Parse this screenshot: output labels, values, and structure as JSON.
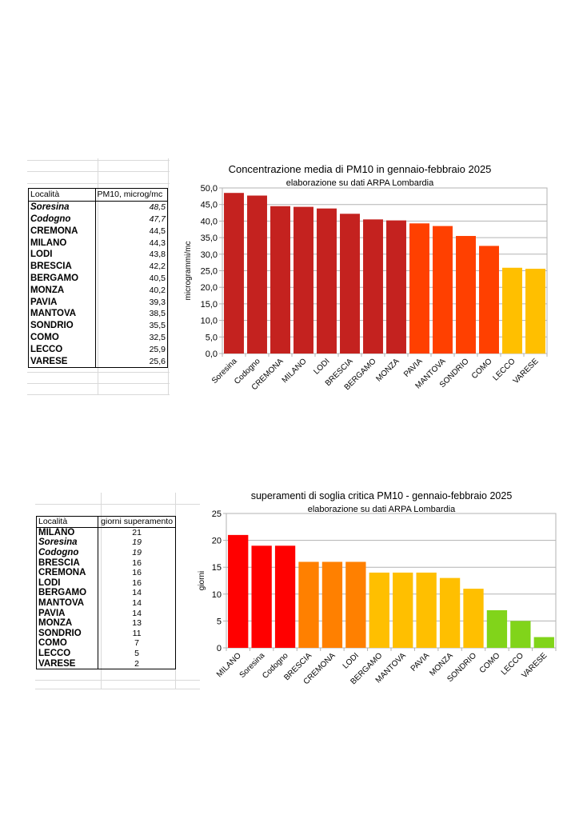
{
  "table1": {
    "headers": [
      "Località",
      "PM10, microg/mc"
    ],
    "rows": [
      {
        "name": "Soresina",
        "value": "48,5",
        "italic": true
      },
      {
        "name": "Codogno",
        "value": "47,7",
        "italic": true
      },
      {
        "name": "CREMONA",
        "value": "44,5",
        "italic": false
      },
      {
        "name": "MILANO",
        "value": "44,3",
        "italic": false
      },
      {
        "name": "LODI",
        "value": "43,8",
        "italic": false
      },
      {
        "name": "BRESCIA",
        "value": "42,2",
        "italic": false
      },
      {
        "name": "BERGAMO",
        "value": "40,5",
        "italic": false
      },
      {
        "name": "MONZA",
        "value": "40,2",
        "italic": false
      },
      {
        "name": "PAVIA",
        "value": "39,3",
        "italic": false
      },
      {
        "name": "MANTOVA",
        "value": "38,5",
        "italic": false
      },
      {
        "name": "SONDRIO",
        "value": "35,5",
        "italic": false
      },
      {
        "name": "COMO",
        "value": "32,5",
        "italic": false
      },
      {
        "name": "LECCO",
        "value": "25,9",
        "italic": false
      },
      {
        "name": "VARESE",
        "value": "25,6",
        "italic": false
      }
    ]
  },
  "table2": {
    "headers": [
      "Località",
      "giorni superamento"
    ],
    "rows": [
      {
        "name": "MILANO",
        "value": "21",
        "italic": false
      },
      {
        "name": "Soresina",
        "value": "19",
        "italic": true
      },
      {
        "name": "Codogno",
        "value": "19",
        "italic": true
      },
      {
        "name": "BRESCIA",
        "value": "16",
        "italic": false
      },
      {
        "name": "CREMONA",
        "value": "16",
        "italic": false
      },
      {
        "name": "LODI",
        "value": "16",
        "italic": false
      },
      {
        "name": "BERGAMO",
        "value": "14",
        "italic": false
      },
      {
        "name": "MANTOVA",
        "value": "14",
        "italic": false
      },
      {
        "name": "PAVIA",
        "value": "14",
        "italic": false
      },
      {
        "name": "MONZA",
        "value": "13",
        "italic": false
      },
      {
        "name": "SONDRIO",
        "value": "11",
        "italic": false
      },
      {
        "name": "COMO",
        "value": "7",
        "italic": false
      },
      {
        "name": "LECCO",
        "value": "5",
        "italic": false
      },
      {
        "name": "VARESE",
        "value": "2",
        "italic": false
      }
    ]
  },
  "chart_data": [
    {
      "type": "bar",
      "title": "Concentrazione media di PM10 in gennaio-febbraio 2025",
      "subtitle": "elaborazione su dati ARPA Lombardia",
      "xlabel": "",
      "ylabel": "microgrammi/mc",
      "ylim": [
        0,
        50
      ],
      "ytick_step": 5,
      "ytick_labels": [
        "0,0",
        "5,0",
        "10,0",
        "15,0",
        "20,0",
        "25,0",
        "30,0",
        "35,0",
        "40,0",
        "45,0",
        "50,0"
      ],
      "grid": true,
      "categories": [
        "Soresina",
        "Codogno",
        "CREMONA",
        "MILANO",
        "LODI",
        "BRESCIA",
        "BERGAMO",
        "MONZA",
        "PAVIA",
        "MANTOVA",
        "SONDRIO",
        "COMO",
        "LECCO",
        "VARESE"
      ],
      "values": [
        48.5,
        47.7,
        44.5,
        44.3,
        43.8,
        42.2,
        40.5,
        40.2,
        39.3,
        38.5,
        35.5,
        32.5,
        25.9,
        25.6
      ],
      "colors": [
        "#c4221f",
        "#c4221f",
        "#c4221f",
        "#c4221f",
        "#c4221f",
        "#c4221f",
        "#c4221f",
        "#c4221f",
        "#ff4000",
        "#ff4000",
        "#ff4000",
        "#ff4000",
        "#ffbf00",
        "#ffbf00"
      ]
    },
    {
      "type": "bar",
      "title": "superamenti di soglia critica PM10 - gennaio-febbraio 2025",
      "subtitle": "elaborazione su dati ARPA Lombardia",
      "xlabel": "",
      "ylabel": "giorni",
      "ylim": [
        0,
        25
      ],
      "ytick_step": 5,
      "ytick_labels": [
        "0",
        "5",
        "10",
        "15",
        "20",
        "25"
      ],
      "grid": true,
      "categories": [
        "MILANO",
        "Soresina",
        "Codogno",
        "BRESCIA",
        "CREMONA",
        "LODI",
        "BERGAMO",
        "MANTOVA",
        "PAVIA",
        "MONZA",
        "SONDRIO",
        "COMO",
        "LECCO",
        "VARESE"
      ],
      "values": [
        21,
        19,
        19,
        16,
        16,
        16,
        14,
        14,
        14,
        13,
        11,
        7,
        5,
        2
      ],
      "colors": [
        "#ff0000",
        "#ff0000",
        "#ff0000",
        "#ff8000",
        "#ff8000",
        "#ff8000",
        "#ffbf00",
        "#ffbf00",
        "#ffbf00",
        "#ffbf00",
        "#ffbf00",
        "#81d41a",
        "#81d41a",
        "#81d41a"
      ]
    }
  ]
}
